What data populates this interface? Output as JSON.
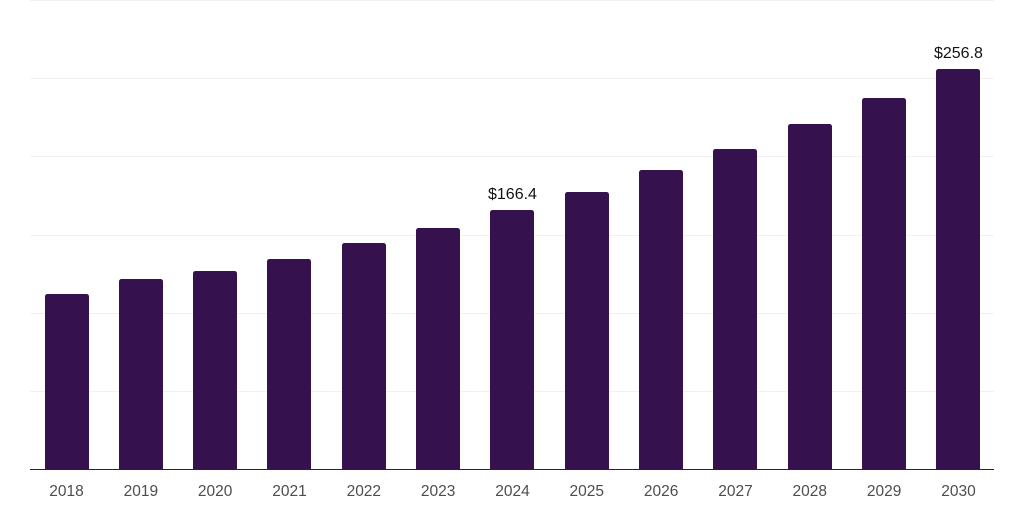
{
  "chart_data": {
    "type": "bar",
    "title": "",
    "xlabel": "",
    "ylabel": "",
    "categories": [
      "2018",
      "2019",
      "2020",
      "2021",
      "2022",
      "2023",
      "2024",
      "2025",
      "2026",
      "2027",
      "2028",
      "2029",
      "2030"
    ],
    "values": [
      112.4,
      122.0,
      127.5,
      135.1,
      145.0,
      154.5,
      166.4,
      177.9,
      191.9,
      205.6,
      221.3,
      238.2,
      256.8
    ],
    "data_labels": [
      {
        "category": "2024",
        "text": "$166.4"
      },
      {
        "category": "2030",
        "text": "$256.8"
      }
    ],
    "ylim": [
      0,
      300
    ],
    "gridline_values": [
      50,
      100,
      150,
      200,
      250,
      300
    ],
    "grid": true,
    "legend": "none",
    "bar_color": "#35114e",
    "gridline_color": "#f0f0f0",
    "axis_line_color": "#262626",
    "tick_label_color": "#4d4d4d",
    "data_label_color": "#121212",
    "background_color": "#ffffff"
  }
}
